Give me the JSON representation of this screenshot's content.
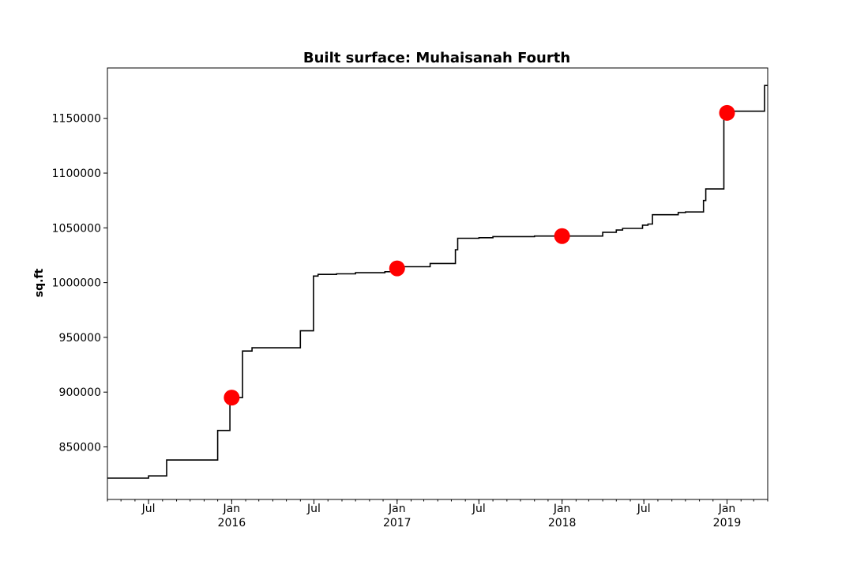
{
  "chart_data": {
    "type": "line",
    "title": "Built surface: Muhaisanah Fourth",
    "xlabel": "",
    "ylabel": "sq.ft",
    "xlim": [
      "2015-04-01",
      "2019-04-01"
    ],
    "ylim": [
      802000,
      1196000
    ],
    "y_ticks": [
      850000,
      900000,
      950000,
      1000000,
      1050000,
      1100000,
      1150000
    ],
    "x_major_ticks": [
      {
        "date": "2015-07-01",
        "label": "Jul",
        "sublabel": ""
      },
      {
        "date": "2016-01-01",
        "label": "Jan",
        "sublabel": "2016"
      },
      {
        "date": "2016-07-01",
        "label": "Jul",
        "sublabel": ""
      },
      {
        "date": "2017-01-01",
        "label": "Jan",
        "sublabel": "2017"
      },
      {
        "date": "2017-07-01",
        "label": "Jul",
        "sublabel": ""
      },
      {
        "date": "2018-01-01",
        "label": "Jan",
        "sublabel": "2018"
      },
      {
        "date": "2018-07-01",
        "label": "Jul",
        "sublabel": ""
      },
      {
        "date": "2019-01-01",
        "label": "Jan",
        "sublabel": "2019"
      }
    ],
    "grid": false,
    "colors": {
      "line": "#000000",
      "marker": "#ff0000"
    },
    "series": [
      {
        "kind": "step",
        "points": [
          {
            "x": "2015-04-01",
            "y": 821500
          },
          {
            "x": "2015-07-01",
            "y": 823500
          },
          {
            "x": "2015-08-10",
            "y": 838000
          },
          {
            "x": "2015-12-01",
            "y": 865000
          },
          {
            "x": "2015-12-28",
            "y": 895000
          },
          {
            "x": "2016-01-25",
            "y": 937500
          },
          {
            "x": "2016-02-15",
            "y": 940500
          },
          {
            "x": "2016-06-01",
            "y": 956000
          },
          {
            "x": "2016-06-30",
            "y": 1006000
          },
          {
            "x": "2016-07-10",
            "y": 1007500
          },
          {
            "x": "2016-08-20",
            "y": 1008000
          },
          {
            "x": "2016-10-01",
            "y": 1009000
          },
          {
            "x": "2016-12-05",
            "y": 1010000
          },
          {
            "x": "2016-12-20",
            "y": 1013000
          },
          {
            "x": "2017-01-15",
            "y": 1014500
          },
          {
            "x": "2017-03-15",
            "y": 1017500
          },
          {
            "x": "2017-05-10",
            "y": 1030000
          },
          {
            "x": "2017-05-15",
            "y": 1040500
          },
          {
            "x": "2017-07-01",
            "y": 1041000
          },
          {
            "x": "2017-08-01",
            "y": 1042000
          },
          {
            "x": "2017-11-01",
            "y": 1042500
          },
          {
            "x": "2018-04-01",
            "y": 1046000
          },
          {
            "x": "2018-05-01",
            "y": 1048000
          },
          {
            "x": "2018-05-15",
            "y": 1049500
          },
          {
            "x": "2018-06-28",
            "y": 1052500
          },
          {
            "x": "2018-07-10",
            "y": 1053500
          },
          {
            "x": "2018-07-20",
            "y": 1062000
          },
          {
            "x": "2018-09-15",
            "y": 1064000
          },
          {
            "x": "2018-10-01",
            "y": 1064500
          },
          {
            "x": "2018-11-10",
            "y": 1075000
          },
          {
            "x": "2018-11-15",
            "y": 1085500
          },
          {
            "x": "2018-12-25",
            "y": 1155000
          },
          {
            "x": "2019-01-05",
            "y": 1156500
          },
          {
            "x": "2019-03-25",
            "y": 1180000
          }
        ]
      },
      {
        "kind": "markers",
        "points": [
          {
            "x": "2016-01-01",
            "y": 895000
          },
          {
            "x": "2017-01-01",
            "y": 1013000
          },
          {
            "x": "2018-01-01",
            "y": 1042500
          },
          {
            "x": "2019-01-01",
            "y": 1155000
          }
        ]
      }
    ]
  }
}
